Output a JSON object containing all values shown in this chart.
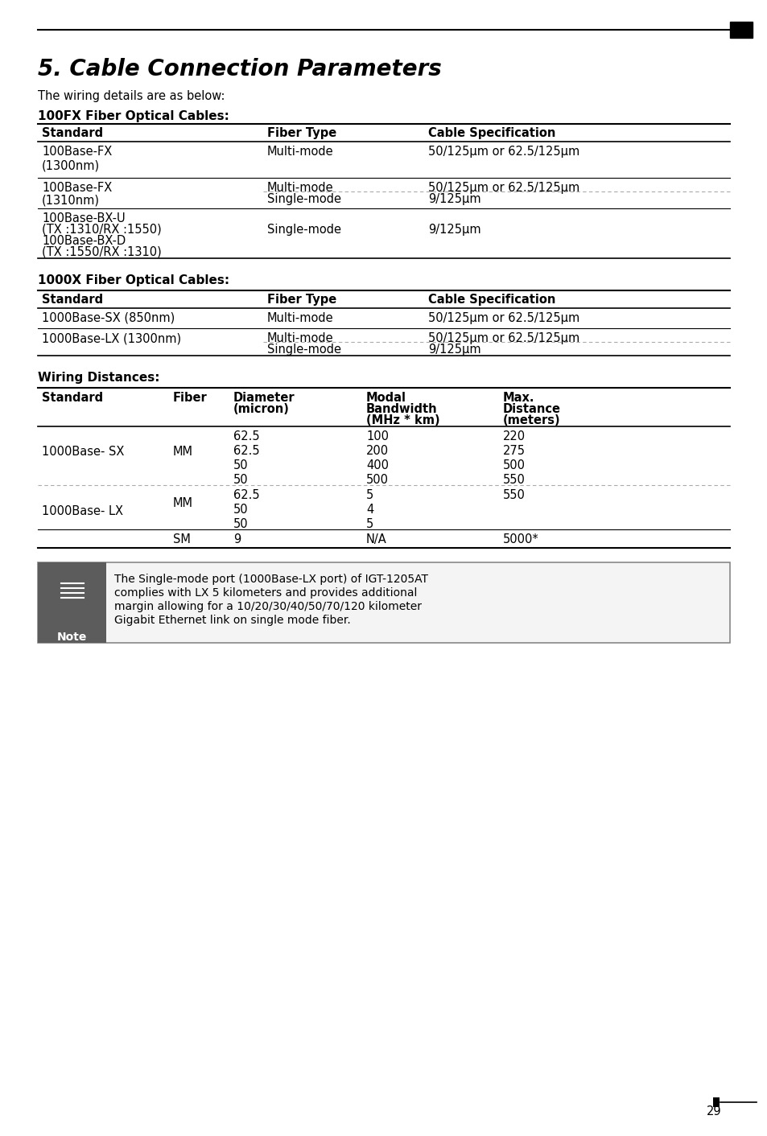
{
  "title": "5. Cable Connection Parameters",
  "intro": "The wiring details are as below:",
  "section1_title": "100FX Fiber Optical Cables:",
  "section2_title": "1000X Fiber Optical Cables:",
  "section3_title": "Wiring Distances:",
  "page_number": "29",
  "bg_color": "#ffffff",
  "header_line_color": "#000000",
  "table_line_color": "#000000",
  "dashed_line_color": "#999999",
  "note_bg": "#5a5a5a",
  "note_text_color": "#ffffff",
  "note_body_bg": "#f0f0f0",
  "note_body_border": "#888888",
  "table1_headers": [
    "Standard",
    "Fiber Type",
    "Cable Specification"
  ],
  "table1_rows": [
    [
      "100Base-FX\n(1300nm)",
      "Multi-mode",
      "50/125μm or 62.5/125μm"
    ],
    [
      "100Base-FX\n(1310nm)",
      "Multi-mode\nSingle-mode",
      "50/125μm or 62.5/125μm\n9/125μm"
    ],
    [
      "100Base-BX-U\n(TX :1310/RX :1550)\n100Base-BX-D\n(TX :1550/RX :1310)",
      "Single-mode",
      "9/125μm"
    ]
  ],
  "table2_headers": [
    "Standard",
    "Fiber Type",
    "Cable Specification"
  ],
  "table2_rows": [
    [
      "1000Base-SX (850nm)",
      "Multi-mode",
      "50/125μm or 62.5/125μm"
    ],
    [
      "1000Base-LX (1300nm)",
      "Multi-mode\nSingle-mode",
      "50/125μm or 62.5/125μm\n9/125μm"
    ]
  ],
  "table3_headers": [
    "Standard",
    "Fiber",
    "Diameter\n(micron)",
    "Modal\nBandwidth\n(MHz * km)",
    "Max.\nDistance\n(meters)"
  ],
  "table3_rows": [
    [
      "1000Base- SX",
      "MM",
      "62.5\n62.5\n50\n50",
      "100\n200\n400\n500",
      "220\n275\n500\n550"
    ],
    [
      "1000Base- LX",
      "MM\n\nSM",
      "62.5\n50\n50\n9",
      "5\n4\n5\nN/A",
      "550\n\n\n5000*"
    ]
  ],
  "note_text": "The Single-mode port (1000Base-LX port) of IGT-1205AT\ncomplies with LX 5 kilometers and provides additional\nmargin allowing for a 10/20/30/40/50/70/120 kilometer\nGigabit Ethernet link on single mode fiber."
}
